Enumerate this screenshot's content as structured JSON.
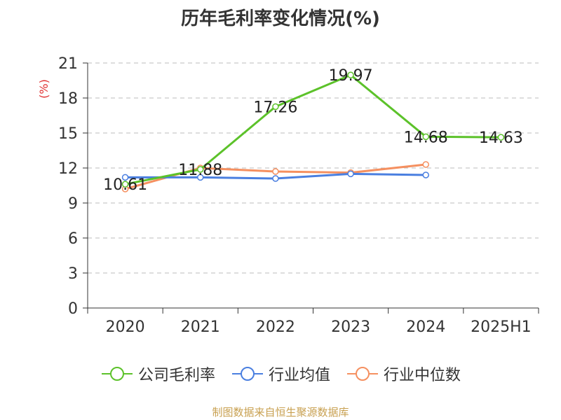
{
  "chart_data": {
    "type": "line",
    "title": "历年毛利率变化情况(%)",
    "ylabel": "(%)",
    "xlabel": "",
    "categories": [
      "2020",
      "2021",
      "2022",
      "2023",
      "2024",
      "2025H1"
    ],
    "ylim": [
      0,
      21
    ],
    "yticks": [
      0,
      3,
      6,
      9,
      12,
      15,
      18,
      21
    ],
    "grid": true,
    "legend_position": "bottom",
    "series": [
      {
        "name": "公司毛利率",
        "color": "#5cc22a",
        "values": [
          10.61,
          11.88,
          17.26,
          19.97,
          14.68,
          14.63
        ],
        "labels": [
          "10.61",
          "11.88",
          "17.26",
          "19.97",
          "14.68",
          "14.63"
        ]
      },
      {
        "name": "行业均值",
        "color": "#4a7fe0",
        "values": [
          11.2,
          11.2,
          11.1,
          11.5,
          11.4,
          null
        ],
        "labels": []
      },
      {
        "name": "行业中位数",
        "color": "#f59060",
        "values": [
          10.2,
          12.0,
          11.7,
          11.6,
          12.3,
          null
        ],
        "labels": []
      }
    ]
  },
  "source": "制图数据来自恒生聚源数据库"
}
